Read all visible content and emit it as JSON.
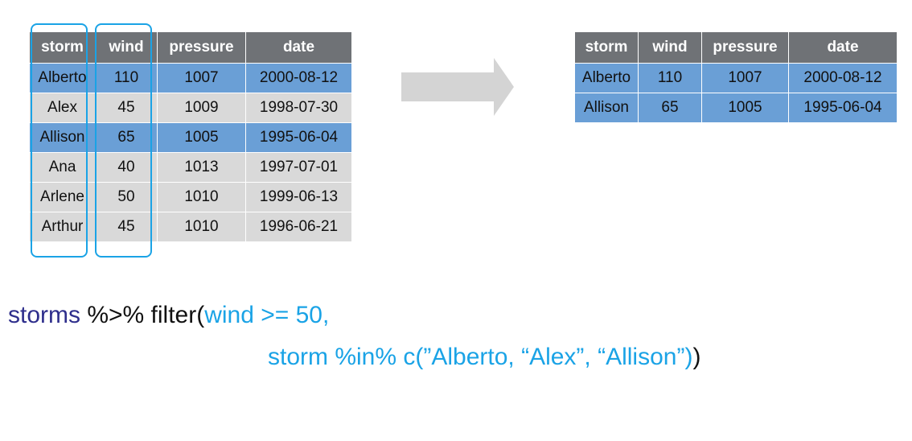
{
  "left_table": {
    "columns": [
      "storm",
      "wind",
      "pressure",
      "date"
    ],
    "rows": [
      [
        "Alberto",
        "110",
        "1007",
        "2000-08-12"
      ],
      [
        "Alex",
        "45",
        "1009",
        "1998-07-30"
      ],
      [
        "Allison",
        "65",
        "1005",
        "1995-06-04"
      ],
      [
        "Ana",
        "40",
        "1013",
        "1997-07-01"
      ],
      [
        "Arlene",
        "50",
        "1010",
        "1999-06-13"
      ],
      [
        "Arthur",
        "45",
        "1010",
        "1996-06-21"
      ]
    ],
    "highlighted_rows": [
      0,
      2
    ]
  },
  "right_table": {
    "columns": [
      "storm",
      "wind",
      "pressure",
      "date"
    ],
    "rows": [
      [
        "Alberto",
        "110",
        "1007",
        "2000-08-12"
      ],
      [
        "Allison",
        "65",
        "1005",
        "1995-06-04"
      ]
    ]
  },
  "code": {
    "line1": {
      "obj": "storms",
      "pipe": " %>% ",
      "fn": "filter(",
      "arg1": "wind >= 50,"
    },
    "line2": {
      "arg2": "storm %in% c(”Alberto, “Alex”, “Allison”)",
      "close": ")"
    }
  },
  "colors": {
    "header": "#6f7276",
    "highlight": "#6a9fd6",
    "gray_row": "#d9d9d9",
    "selection": "#1aa3e6",
    "arrow": "#d4d4d4"
  }
}
